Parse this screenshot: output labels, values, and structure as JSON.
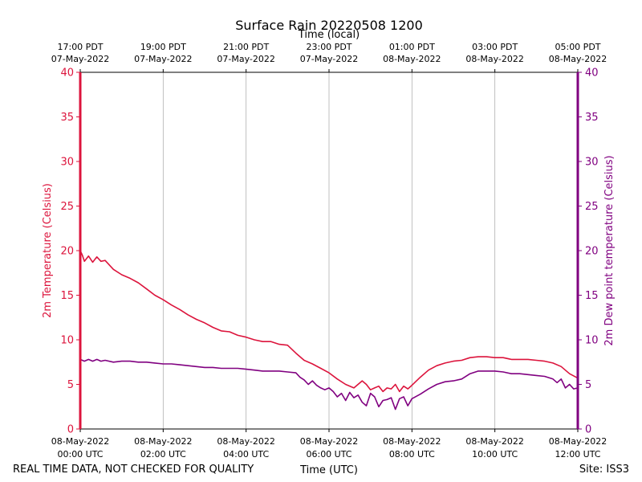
{
  "chart_data": {
    "type": "line",
    "title": "Surface Rain 20220508 1200",
    "top_xlabel": "Time (local)",
    "xlabel": "Time (UTC)",
    "ylabel_left": "2m Temperature (Celsius)",
    "ylabel_right": "2m Dew point temperature (Celsius)",
    "xlim_hours": [
      0,
      12
    ],
    "ylim_left": [
      0,
      40
    ],
    "ylim_right": [
      0,
      40
    ],
    "yticks": [
      0,
      5,
      10,
      15,
      20,
      25,
      30,
      35,
      40
    ],
    "grid": "vertical",
    "x_ticks_utc": [
      {
        "hour": 0,
        "line1": "08-May-2022",
        "line2": "00:00 UTC"
      },
      {
        "hour": 2,
        "line1": "08-May-2022",
        "line2": "02:00 UTC"
      },
      {
        "hour": 4,
        "line1": "08-May-2022",
        "line2": "04:00 UTC"
      },
      {
        "hour": 6,
        "line1": "08-May-2022",
        "line2": "06:00 UTC"
      },
      {
        "hour": 8,
        "line1": "08-May-2022",
        "line2": "08:00 UTC"
      },
      {
        "hour": 10,
        "line1": "08-May-2022",
        "line2": "10:00 UTC"
      },
      {
        "hour": 12,
        "line1": "08-May-2022",
        "line2": "12:00 UTC"
      }
    ],
    "x_ticks_local": [
      {
        "hour": 0,
        "line1": "17:00 PDT",
        "line2": "07-May-2022"
      },
      {
        "hour": 2,
        "line1": "19:00 PDT",
        "line2": "07-May-2022"
      },
      {
        "hour": 4,
        "line1": "21:00 PDT",
        "line2": "07-May-2022"
      },
      {
        "hour": 6,
        "line1": "23:00 PDT",
        "line2": "07-May-2022"
      },
      {
        "hour": 8,
        "line1": "01:00 PDT",
        "line2": "08-May-2022"
      },
      {
        "hour": 10,
        "line1": "03:00 PDT",
        "line2": "08-May-2022"
      },
      {
        "hour": 12,
        "line1": "05:00 PDT",
        "line2": "08-May-2022"
      }
    ],
    "series": [
      {
        "name": "2m Temperature",
        "axis": "left",
        "color": "#dc143c",
        "x": [
          0,
          0.05,
          0.1,
          0.2,
          0.3,
          0.4,
          0.5,
          0.6,
          0.8,
          1.0,
          1.2,
          1.4,
          1.6,
          1.8,
          2.0,
          2.2,
          2.4,
          2.6,
          2.8,
          3.0,
          3.2,
          3.4,
          3.6,
          3.8,
          4.0,
          4.2,
          4.4,
          4.6,
          4.8,
          5.0,
          5.2,
          5.4,
          5.6,
          5.8,
          6.0,
          6.2,
          6.4,
          6.6,
          6.8,
          6.9,
          7.0,
          7.1,
          7.2,
          7.3,
          7.4,
          7.5,
          7.6,
          7.7,
          7.8,
          7.9,
          8.0,
          8.2,
          8.4,
          8.6,
          8.8,
          9.0,
          9.2,
          9.4,
          9.6,
          9.8,
          10.0,
          10.2,
          10.4,
          10.6,
          10.8,
          11.0,
          11.2,
          11.4,
          11.6,
          11.8,
          12.0
        ],
        "values": [
          20.0,
          19.5,
          18.8,
          19.4,
          18.7,
          19.3,
          18.8,
          18.9,
          17.9,
          17.3,
          16.9,
          16.4,
          15.7,
          15.0,
          14.5,
          13.9,
          13.4,
          12.8,
          12.3,
          11.9,
          11.4,
          11.0,
          10.9,
          10.5,
          10.3,
          10.0,
          9.8,
          9.8,
          9.5,
          9.4,
          8.5,
          7.7,
          7.3,
          6.8,
          6.3,
          5.6,
          5.0,
          4.6,
          5.4,
          5.0,
          4.4,
          4.6,
          4.8,
          4.2,
          4.6,
          4.5,
          5.0,
          4.2,
          4.8,
          4.5,
          4.9,
          5.8,
          6.6,
          7.1,
          7.4,
          7.6,
          7.7,
          8.0,
          8.1,
          8.1,
          8.0,
          8.0,
          7.8,
          7.8,
          7.8,
          7.7,
          7.6,
          7.4,
          7.0,
          6.2,
          5.7
        ]
      },
      {
        "name": "2m Dew point temperature",
        "axis": "right",
        "color": "#800080",
        "x": [
          0,
          0.1,
          0.2,
          0.3,
          0.4,
          0.5,
          0.6,
          0.8,
          1.0,
          1.2,
          1.4,
          1.6,
          1.8,
          2.0,
          2.2,
          2.4,
          2.6,
          2.8,
          3.0,
          3.2,
          3.4,
          3.6,
          3.8,
          4.0,
          4.2,
          4.4,
          4.6,
          4.8,
          5.0,
          5.2,
          5.3,
          5.4,
          5.5,
          5.6,
          5.7,
          5.8,
          5.9,
          6.0,
          6.1,
          6.2,
          6.3,
          6.4,
          6.5,
          6.6,
          6.7,
          6.8,
          6.9,
          7.0,
          7.1,
          7.2,
          7.3,
          7.4,
          7.5,
          7.6,
          7.7,
          7.8,
          7.9,
          8.0,
          8.2,
          8.4,
          8.6,
          8.8,
          9.0,
          9.2,
          9.4,
          9.6,
          9.8,
          10.0,
          10.2,
          10.4,
          10.6,
          10.8,
          11.0,
          11.2,
          11.4,
          11.5,
          11.6,
          11.7,
          11.8,
          11.9,
          12.0
        ],
        "values": [
          7.8,
          7.6,
          7.8,
          7.6,
          7.8,
          7.6,
          7.7,
          7.5,
          7.6,
          7.6,
          7.5,
          7.5,
          7.4,
          7.3,
          7.3,
          7.2,
          7.1,
          7.0,
          6.9,
          6.9,
          6.8,
          6.8,
          6.8,
          6.7,
          6.6,
          6.5,
          6.5,
          6.5,
          6.4,
          6.3,
          5.8,
          5.5,
          5.0,
          5.4,
          4.9,
          4.6,
          4.4,
          4.6,
          4.2,
          3.6,
          4.0,
          3.2,
          4.1,
          3.5,
          3.8,
          3.0,
          2.6,
          4.0,
          3.6,
          2.5,
          3.2,
          3.3,
          3.5,
          2.2,
          3.4,
          3.6,
          2.6,
          3.4,
          3.9,
          4.5,
          5.0,
          5.3,
          5.4,
          5.6,
          6.2,
          6.5,
          6.5,
          6.5,
          6.4,
          6.2,
          6.2,
          6.1,
          6.0,
          5.9,
          5.6,
          5.2,
          5.6,
          4.6,
          5.0,
          4.5,
          4.6
        ]
      }
    ]
  },
  "footer": {
    "left": "REAL TIME DATA, NOT CHECKED FOR QUALITY",
    "right": "Site: ISS3"
  },
  "colors": {
    "temperature": "#dc143c",
    "dewpoint": "#800080",
    "grid": "#b0b0b0"
  }
}
